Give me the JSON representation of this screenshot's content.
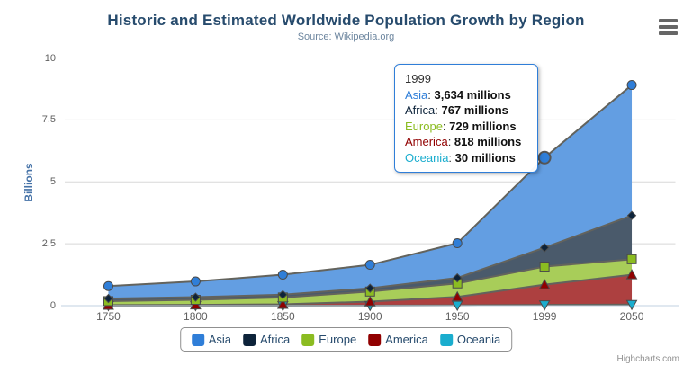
{
  "header": {
    "title": "Historic and Estimated Worldwide Population Growth by Region",
    "subtitle": "Source: Wikipedia.org"
  },
  "yaxis": {
    "title": "Billions",
    "tick_labels": [
      "0",
      "2.5",
      "5",
      "7.5",
      "10"
    ]
  },
  "xaxis": {
    "categories": [
      "1750",
      "1800",
      "1850",
      "1900",
      "1950",
      "1999",
      "2050"
    ]
  },
  "chart_data": {
    "type": "area",
    "stacked": true,
    "title": "Historic and Estimated Worldwide Population Growth by Region",
    "subtitle": "Source: Wikipedia.org",
    "categories": [
      "1750",
      "1800",
      "1850",
      "1900",
      "1950",
      "1999",
      "2050"
    ],
    "unit": "millions",
    "ylabel": "Billions",
    "ylim": [
      0,
      10
    ],
    "yticks": [
      0,
      2.5,
      5,
      7.5,
      10
    ],
    "grid": true,
    "legend_position": "bottom",
    "stack_order_bottom_to_top": [
      "Oceania",
      "America",
      "Europe",
      "Africa",
      "Asia"
    ],
    "series": [
      {
        "name": "Asia",
        "color": "#2f7ed8",
        "marker": "circle",
        "values": [
          502,
          635,
          809,
          947,
          1402,
          3634,
          5268
        ]
      },
      {
        "name": "Africa",
        "color": "#0d233a",
        "marker": "diamond",
        "values": [
          106,
          107,
          111,
          133,
          221,
          767,
          1766
        ]
      },
      {
        "name": "Europe",
        "color": "#8bbc21",
        "marker": "square",
        "values": [
          163,
          203,
          276,
          408,
          547,
          729,
          628
        ]
      },
      {
        "name": "America",
        "color": "#910000",
        "marker": "triangle-up",
        "values": [
          18,
          31,
          54,
          156,
          339,
          818,
          1201
        ]
      },
      {
        "name": "Oceania",
        "color": "#1aadce",
        "marker": "triangle-down",
        "values": [
          2,
          2,
          2,
          6,
          13,
          30,
          46
        ]
      }
    ],
    "hover": {
      "series": "Asia",
      "category": "1999",
      "category_index": 5
    }
  },
  "tooltip": {
    "header": "1999",
    "rows": [
      {
        "name": "Asia",
        "color": "#2f7ed8",
        "value": "3,634 millions"
      },
      {
        "name": "Africa",
        "color": "#0d233a",
        "value": "767 millions"
      },
      {
        "name": "Europe",
        "color": "#8bbc21",
        "value": "729 millions"
      },
      {
        "name": "America",
        "color": "#910000",
        "value": "818 millions"
      },
      {
        "name": "Oceania",
        "color": "#1aadce",
        "value": "30 millions"
      }
    ]
  },
  "legend": {
    "items": [
      {
        "label": "Asia",
        "color": "#2f7ed8"
      },
      {
        "label": "Africa",
        "color": "#0d233a"
      },
      {
        "label": "Europe",
        "color": "#8bbc21"
      },
      {
        "label": "America",
        "color": "#910000"
      },
      {
        "label": "Oceania",
        "color": "#1aadce"
      }
    ]
  },
  "credits": {
    "label": "Highcharts.com"
  },
  "colors": {
    "title": "#274b6d",
    "subtitle": "#6D869F",
    "axis_label": "#606060",
    "yaxis_title": "#4572A7",
    "gridline": "#D8D8D8",
    "axis_line": "#C0D0E0",
    "boundary_line": "#63635d",
    "marker_stroke": "#4a4a4a",
    "tooltip_border": "#2f7ed8",
    "legend_border": "#909090",
    "legend_text": "#274b6d",
    "credits_text": "#909090",
    "fill_opacity_over_white": 0.75
  }
}
